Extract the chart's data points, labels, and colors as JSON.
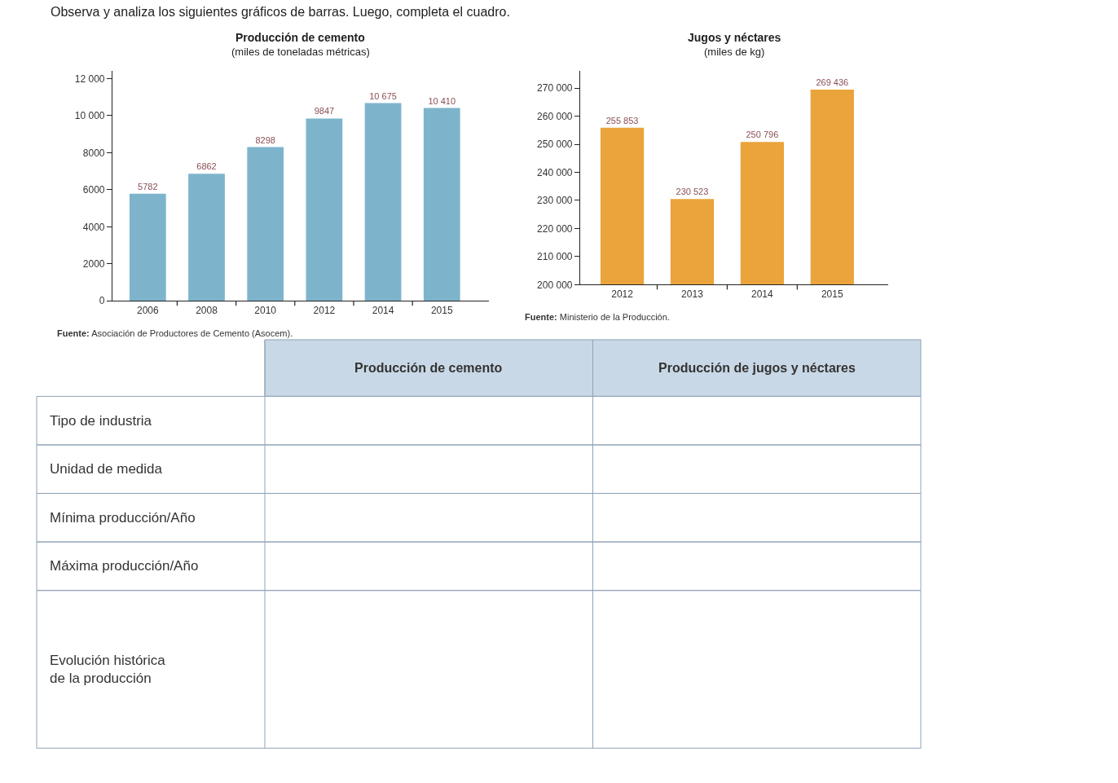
{
  "chart_data": [
    {
      "type": "other",
      "title": "Observa y analiza los siguientes gráficos de barras. Luego, completa el cuadro."
    },
    {
      "type": "bar",
      "title": "Producción de cemento",
      "subtitle": "(miles de toneladas métricas)",
      "categories": [
        "2006",
        "2008",
        "2010",
        "2012",
        "2014",
        "2015"
      ],
      "values": [
        5782,
        6862,
        8298,
        9847,
        10675,
        10410
      ],
      "value_labels": [
        "5782",
        "6862",
        "8298",
        "9847",
        "10 675",
        "10 410"
      ],
      "color": "#7db4cc",
      "ylim": [
        0,
        12400
      ],
      "yticks": [
        0,
        2000,
        4000,
        6000,
        8000,
        {
          "value": 10000,
          "label": "10 000"
        },
        {
          "value": 12000,
          "label": "12 000"
        }
      ],
      "annotations": [
        "Fuente: Asociación de Productores de Cemento (Asocem)."
      ]
    },
    {
      "type": "bar",
      "title": "Jugos y néctares",
      "subtitle": "(miles de kg)",
      "categories": [
        "2012",
        "2013",
        "2014",
        "2015"
      ],
      "values": [
        255853,
        230523,
        250796,
        269436
      ],
      "value_labels": [
        "255 853",
        "230 523",
        "250 796",
        "269 436"
      ],
      "color": "#eba33c",
      "ylim": [
        200000,
        276000
      ],
      "yticks": [
        {
          "value": 200000,
          "label": "200 000"
        },
        {
          "value": 210000,
          "label": "210 000"
        },
        {
          "value": 220000,
          "label": "220 000"
        },
        {
          "value": 230000,
          "label": "230 000"
        },
        {
          "value": 240000,
          "label": "240 000"
        },
        {
          "value": 250000,
          "label": "250 000"
        },
        {
          "value": 260000,
          "label": "260 000"
        },
        {
          "value": 270000,
          "label": "270 000"
        }
      ],
      "annotations": [
        "Fuente: Ministerio de la Producción."
      ]
    },
    {
      "type": "other",
      "categories": [
        "Producción de cemento",
        "Producción de jugos y néctares"
      ],
      "y_categories": [
        "Tipo de industria",
        "Unidad de medida",
        "Mínima producción/Año",
        "Máxima producción/Año",
        "Evolución histórica de la producción"
      ]
    }
  ]
}
